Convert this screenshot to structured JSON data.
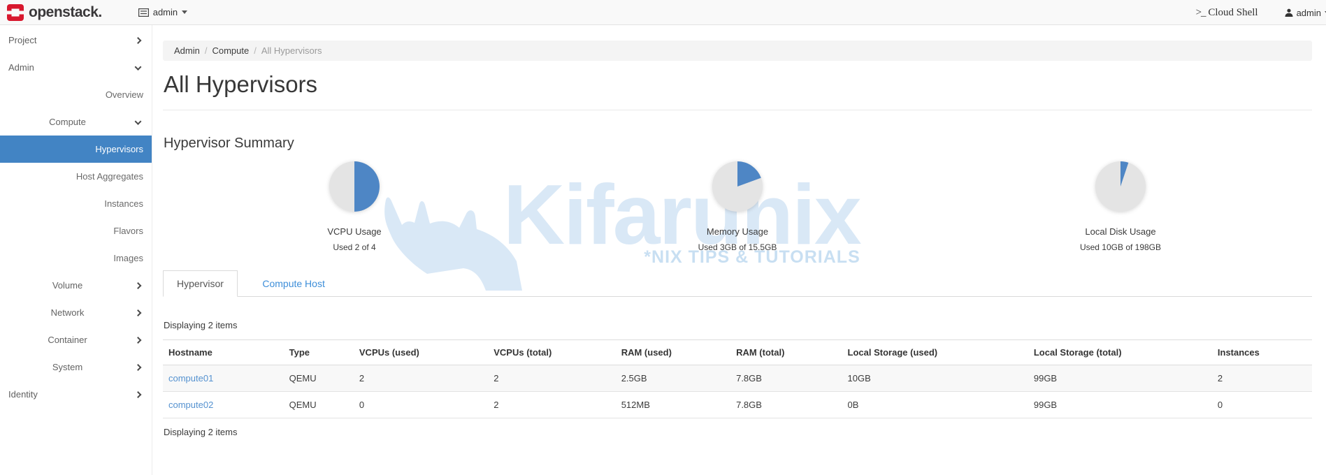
{
  "navbar": {
    "brand": "openstack.",
    "domain_picker": {
      "label": "admin"
    },
    "cloud_shell": {
      "prompt": ">_",
      "label": "Cloud Shell"
    },
    "user_menu": {
      "label": "admin"
    }
  },
  "sidebar": {
    "items": [
      {
        "label": "Project",
        "level": 1,
        "chevron": "right",
        "selected": false
      },
      {
        "label": "Admin",
        "level": 1,
        "chevron": "down",
        "selected": false
      },
      {
        "label": "Overview",
        "level": 3,
        "chevron": null,
        "selected": false
      },
      {
        "label": "Compute",
        "level": 2,
        "chevron": "down",
        "selected": false
      },
      {
        "label": "Hypervisors",
        "level": 3,
        "chevron": null,
        "selected": true
      },
      {
        "label": "Host Aggregates",
        "level": 3,
        "chevron": null,
        "selected": false
      },
      {
        "label": "Instances",
        "level": 3,
        "chevron": null,
        "selected": false
      },
      {
        "label": "Flavors",
        "level": 3,
        "chevron": null,
        "selected": false
      },
      {
        "label": "Images",
        "level": 3,
        "chevron": null,
        "selected": false
      },
      {
        "label": "Volume",
        "level": 2,
        "chevron": "right",
        "selected": false
      },
      {
        "label": "Network",
        "level": 2,
        "chevron": "right",
        "selected": false
      },
      {
        "label": "Container",
        "level": 2,
        "chevron": "right",
        "selected": false
      },
      {
        "label": "System",
        "level": 2,
        "chevron": "right",
        "selected": false
      },
      {
        "label": "Identity",
        "level": 1,
        "chevron": "right",
        "selected": false
      }
    ]
  },
  "breadcrumb": {
    "items": [
      "Admin",
      "Compute",
      "All Hypervisors"
    ]
  },
  "page": {
    "title": "All Hypervisors",
    "summary_heading": "Hypervisor Summary"
  },
  "chart_data": [
    {
      "type": "pie",
      "title": "VCPU Usage",
      "subtitle": "Used 2 of 4",
      "used": 2,
      "total": 4,
      "percent": 50,
      "colors": {
        "used": "#4e86c5",
        "free": "#e4e4e4"
      }
    },
    {
      "type": "pie",
      "title": "Memory Usage",
      "subtitle": "Used 3GB of 15.5GB",
      "used": 3,
      "total": 15.5,
      "percent": 19.4,
      "colors": {
        "used": "#4e86c5",
        "free": "#e4e4e4"
      }
    },
    {
      "type": "pie",
      "title": "Local Disk Usage",
      "subtitle": "Used 10GB of 198GB",
      "used": 10,
      "total": 198,
      "percent": 5.1,
      "colors": {
        "used": "#4e86c5",
        "free": "#e4e4e4"
      }
    }
  ],
  "tabs": [
    {
      "label": "Hypervisor",
      "active": true
    },
    {
      "label": "Compute Host",
      "active": false
    }
  ],
  "table": {
    "count_top": "Displaying 2 items",
    "count_bottom": "Displaying 2 items",
    "columns": [
      "Hostname",
      "Type",
      "VCPUs (used)",
      "VCPUs (total)",
      "RAM (used)",
      "RAM (total)",
      "Local Storage (used)",
      "Local Storage (total)",
      "Instances"
    ],
    "rows": [
      {
        "hostname": "compute01",
        "type": "QEMU",
        "vcpus_used": "2",
        "vcpus_total": "2",
        "ram_used": "2.5GB",
        "ram_total": "7.8GB",
        "storage_used": "10GB",
        "storage_total": "99GB",
        "instances": "2"
      },
      {
        "hostname": "compute02",
        "type": "QEMU",
        "vcpus_used": "0",
        "vcpus_total": "2",
        "ram_used": "512MB",
        "ram_total": "7.8GB",
        "storage_used": "0B",
        "storage_total": "99GB",
        "instances": "0"
      }
    ]
  },
  "watermark": {
    "text": "Kifarunix",
    "tagline": "*NIX TIPS & TUTORIALS"
  },
  "colors": {
    "brand_red": "#d8182e",
    "sidebar_selected": "#4284c4",
    "pie_used": "#4e86c5",
    "pie_free": "#e4e4e4",
    "link_blue": "#5592d0",
    "tab_link_blue": "#3d8ed9",
    "watermark_blue": "#d9e8f6"
  }
}
